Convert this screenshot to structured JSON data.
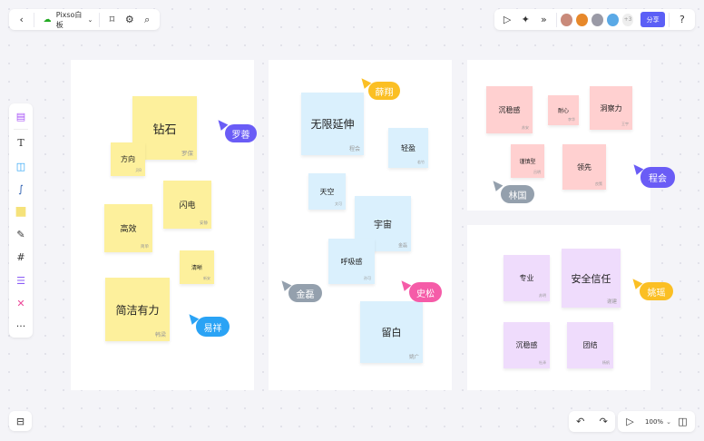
{
  "topbar": {
    "file_name": "Pixso白板",
    "share_label": "分享",
    "more_users": "+3"
  },
  "colors": {
    "accent": "#5b5ff6",
    "yellow": "#fdf09c",
    "blue": "#daf0fd",
    "pink": "#ffd0d0",
    "purple": "#efdcfc"
  },
  "zoom": "100%",
  "notes": [
    {
      "text": "钻石",
      "author": "罗保"
    },
    {
      "text": "方向",
      "author": "贝B"
    },
    {
      "text": "闪电",
      "author": "安静"
    },
    {
      "text": "高效",
      "author": "简单"
    },
    {
      "text": "清晰",
      "author": "新安"
    },
    {
      "text": "简洁有力",
      "author": "韩梁"
    },
    {
      "text": "无限延伸",
      "author": "程会"
    },
    {
      "text": "轻盈",
      "author": "若竹"
    },
    {
      "text": "天空",
      "author": "文可"
    },
    {
      "text": "宇宙",
      "author": "金磊"
    },
    {
      "text": "呼吸感",
      "author": "孙可"
    },
    {
      "text": "留白",
      "author": "姚广"
    },
    {
      "text": "沉稳感",
      "author": "苏安"
    },
    {
      "text": "耐心",
      "author": "李华"
    },
    {
      "text": "洞察力",
      "author": "王宇"
    },
    {
      "text": "谨慎型",
      "author": "吕明"
    },
    {
      "text": "领先",
      "author": "良策"
    },
    {
      "text": "专业",
      "author": "苏明"
    },
    {
      "text": "安全信任",
      "author": "谢建"
    },
    {
      "text": "沉稳感",
      "author": "杜泽"
    },
    {
      "text": "团结",
      "author": "杨帆"
    }
  ],
  "cursors": [
    {
      "name": "罗蓉",
      "color": "#6a5cf6"
    },
    {
      "name": "易祥",
      "color": "#2aa3f5"
    },
    {
      "name": "薛翔",
      "color": "#fbbf24"
    },
    {
      "name": "金磊",
      "color": "#94a0ad"
    },
    {
      "name": "史松",
      "color": "#f55ca8"
    },
    {
      "name": "林国",
      "color": "#94a0ad"
    },
    {
      "name": "程会",
      "color": "#6a5cf6"
    },
    {
      "name": "姚瑶",
      "color": "#fbbf24"
    }
  ]
}
